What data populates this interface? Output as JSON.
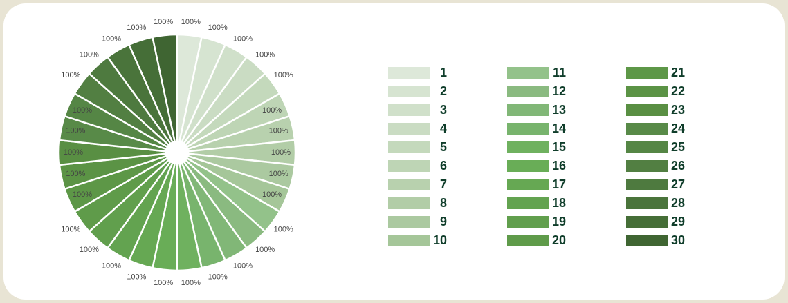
{
  "chart_data": {
    "type": "pie",
    "categories": [
      "1",
      "2",
      "3",
      "4",
      "5",
      "6",
      "7",
      "8",
      "9",
      "10",
      "11",
      "12",
      "13",
      "14",
      "15",
      "16",
      "17",
      "18",
      "19",
      "20",
      "21",
      "22",
      "23",
      "24",
      "25",
      "26",
      "27",
      "28",
      "29",
      "30"
    ],
    "values": [
      100,
      100,
      100,
      100,
      100,
      100,
      100,
      100,
      100,
      100,
      100,
      100,
      100,
      100,
      100,
      100,
      100,
      100,
      100,
      100,
      100,
      100,
      100,
      100,
      100,
      100,
      100,
      100,
      100,
      100
    ],
    "value_labels": [
      "100%",
      "100%",
      "100%",
      "100%",
      "100%",
      "100%",
      "100%",
      "100%",
      "100%",
      "100%",
      "100%",
      "100%",
      "100%",
      "100%",
      "100%",
      "100%",
      "100%",
      "100%",
      "100%",
      "100%",
      "100%",
      "100%",
      "100%",
      "100%",
      "100%",
      "100%",
      "100%",
      "100%",
      "100%",
      "100%"
    ],
    "colors": [
      "#dde8d9",
      "#d6e4d1",
      "#d0e0ca",
      "#cadcc3",
      "#c4d9bc",
      "#bed5b5",
      "#b8d1ae",
      "#b2cda7",
      "#abc9a0",
      "#a5c699",
      "#93c28a",
      "#8aba80",
      "#81b777",
      "#78b46d",
      "#6fb15f",
      "#69ad57",
      "#66a853",
      "#63a350",
      "#619f4d",
      "#5f9b4a",
      "#5d9747",
      "#5b9345",
      "#598f43",
      "#588a48",
      "#558645",
      "#527f42",
      "#4e7a3f",
      "#4a743b",
      "#456e37",
      "#3f6532"
    ],
    "legend": "right"
  }
}
